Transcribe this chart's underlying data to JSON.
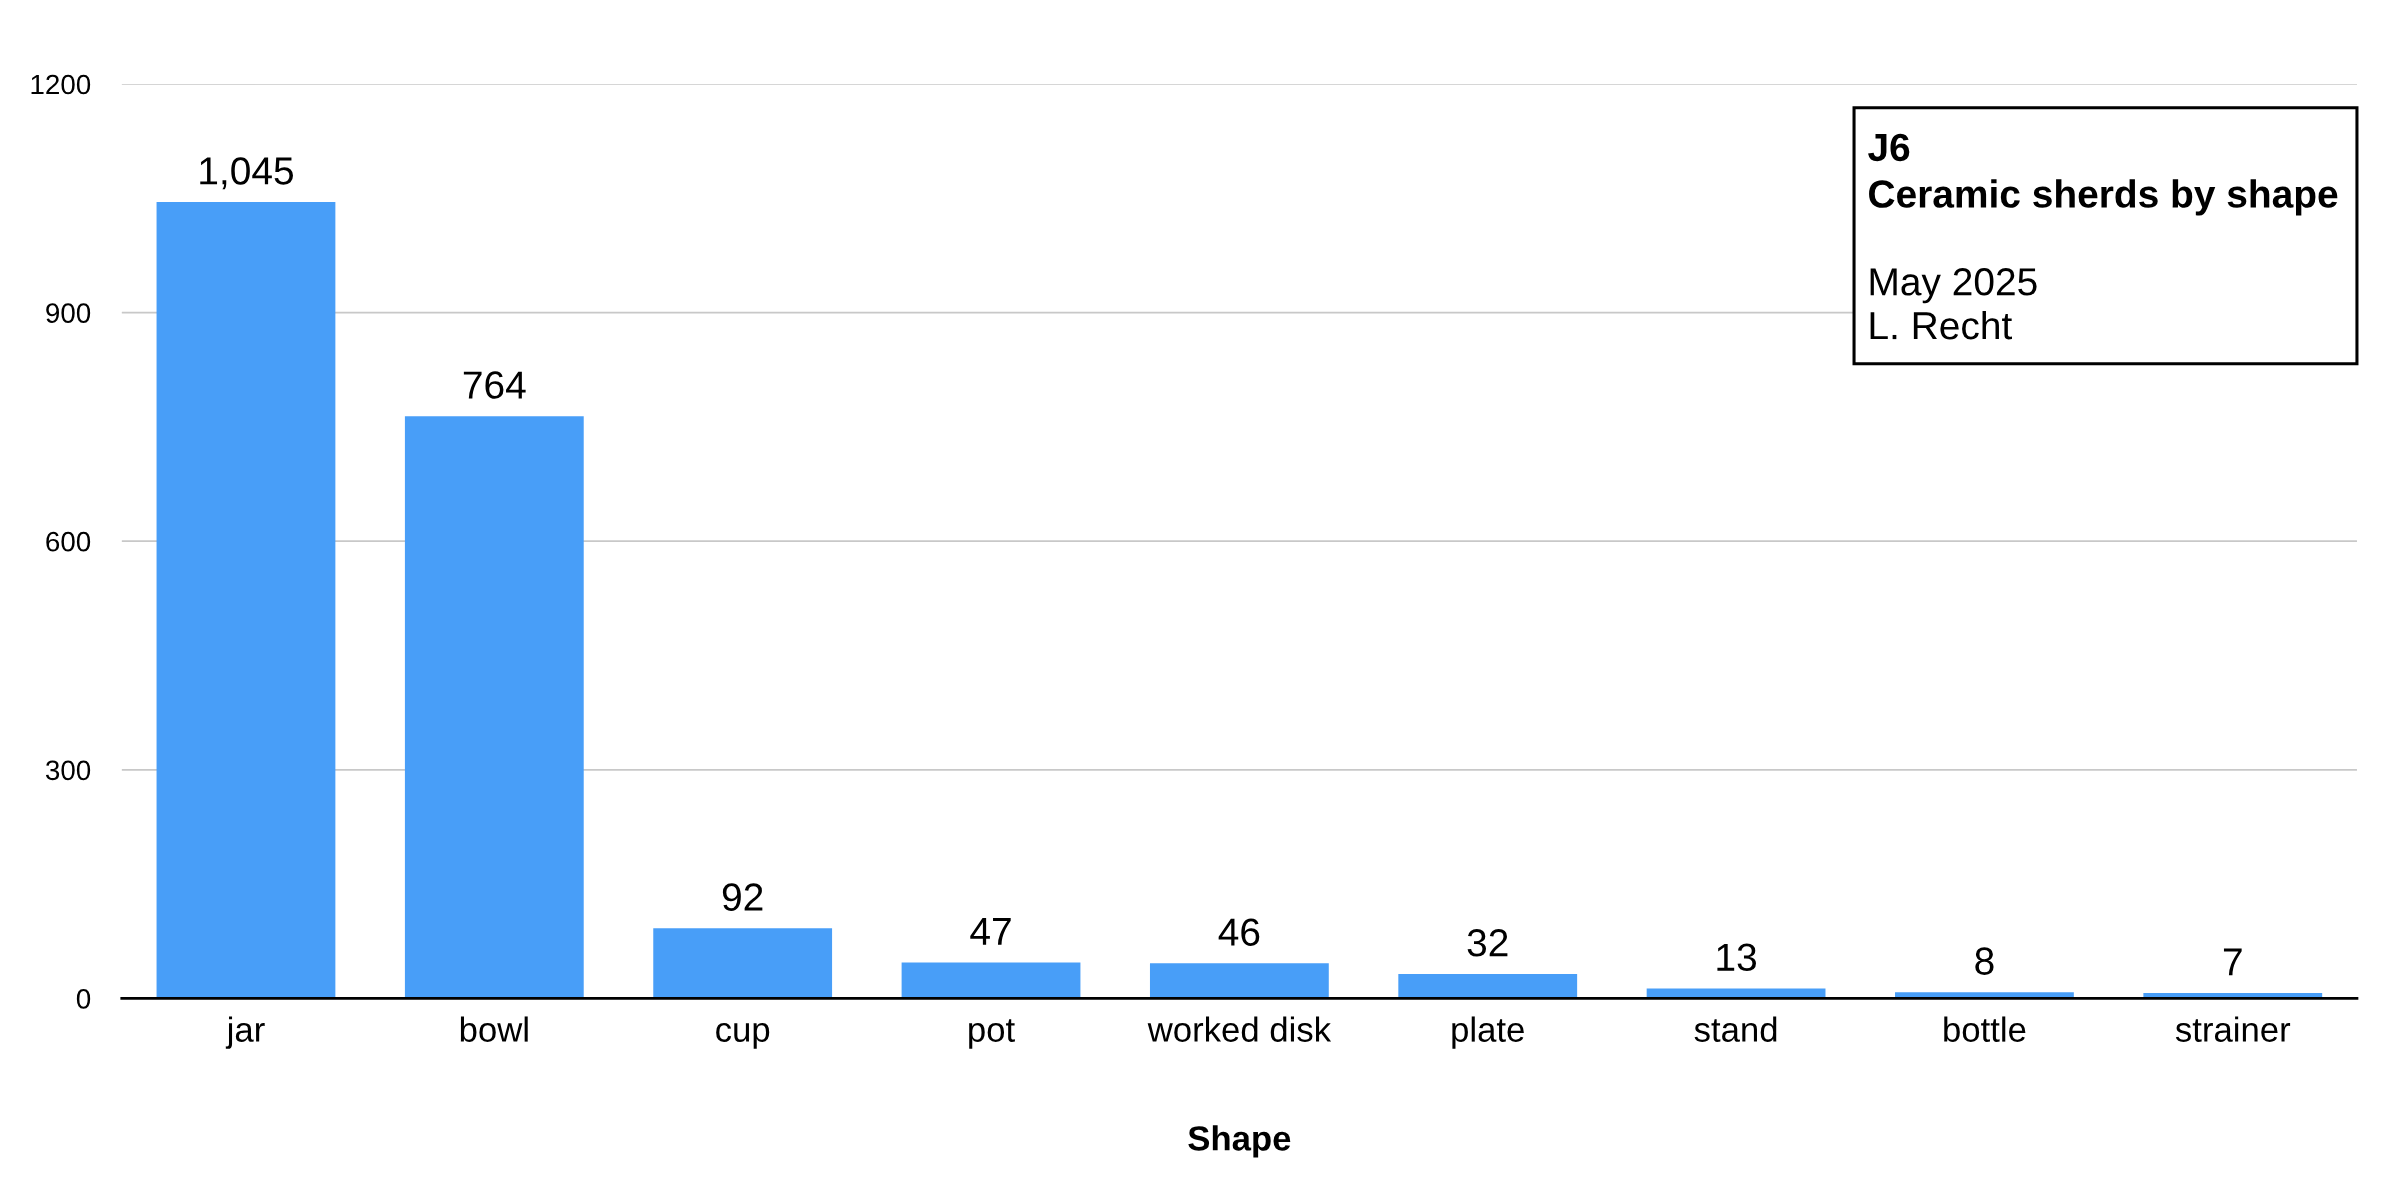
{
  "chart_data": {
    "type": "bar",
    "title": "J6",
    "subtitle": "Ceramic sherds by shape",
    "xlabel": "Shape",
    "categories": [
      "jar",
      "bowl",
      "cup",
      "pot",
      "worked disk",
      "plate",
      "stand",
      "bottle",
      "strainer"
    ],
    "values": [
      1045,
      764,
      92,
      47,
      46,
      32,
      13,
      8,
      7
    ],
    "color": "#489ef8",
    "value_labels": [
      "1,045",
      "764",
      "92",
      "47",
      "46",
      "32",
      "13",
      "8",
      "7"
    ],
    "ylim": [
      0,
      1200
    ],
    "yticks": [
      0,
      300,
      600,
      900,
      1200
    ],
    "grid": "y",
    "annotations": [
      "May 2025",
      "L. Recht"
    ]
  }
}
